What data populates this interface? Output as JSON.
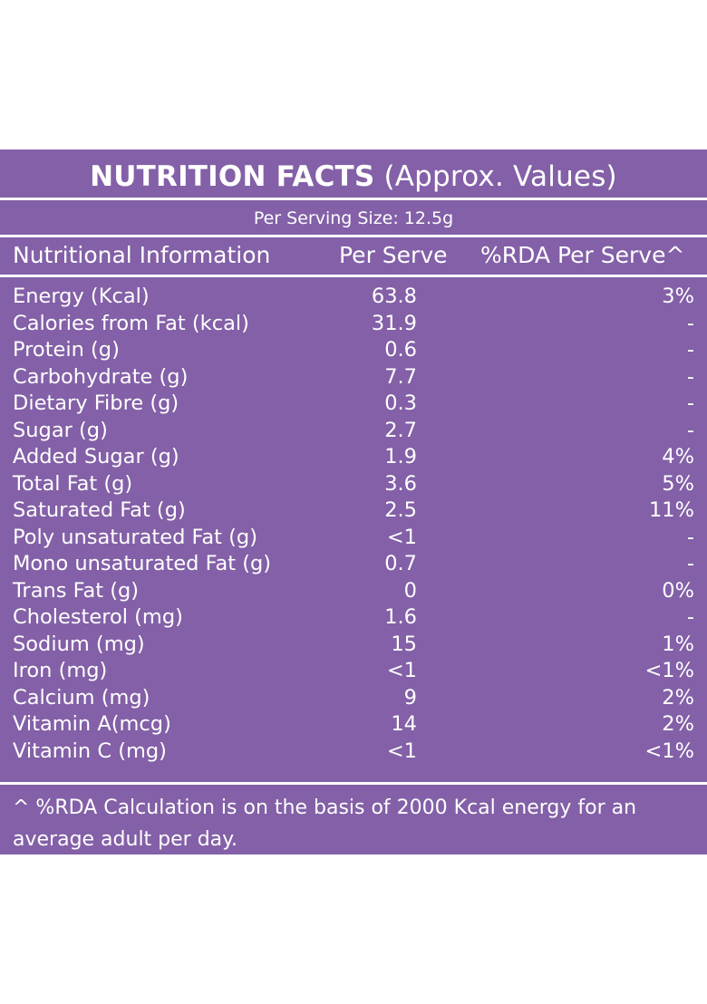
{
  "title": {
    "bold": "NUTRITION FACTS",
    "rest": " (Approx. Values)"
  },
  "serving": "Per Serving Size: 12.5g",
  "headers": {
    "name": "Nutritional Information",
    "serve": "Per Serve",
    "rda": "%RDA Per Serve^"
  },
  "rows": [
    {
      "name": "Energy (Kcal)",
      "serve": "63.8",
      "rda": "3%"
    },
    {
      "name": "Calories from Fat (kcal)",
      "serve": "31.9",
      "rda": "-"
    },
    {
      "name": "Protein (g)",
      "serve": "0.6",
      "rda": "-"
    },
    {
      "name": "Carbohydrate (g)",
      "serve": "7.7",
      "rda": "-"
    },
    {
      "name": "Dietary Fibre (g)",
      "serve": "0.3",
      "rda": "-"
    },
    {
      "name": "Sugar (g)",
      "serve": "2.7",
      "rda": "-"
    },
    {
      "name": "Added Sugar (g)",
      "serve": "1.9",
      "rda": "4%"
    },
    {
      "name": "Total Fat (g)",
      "serve": "3.6",
      "rda": "5%"
    },
    {
      "name": "Saturated Fat (g)",
      "serve": "2.5",
      "rda": "11%"
    },
    {
      "name": "Poly unsaturated Fat (g)",
      "serve": "<1",
      "rda": "-"
    },
    {
      "name": "Mono unsaturated Fat (g)",
      "serve": "0.7",
      "rda": "-"
    },
    {
      "name": "Trans Fat (g)",
      "serve": "0",
      "rda": "0%"
    },
    {
      "name": "Cholesterol (mg)",
      "serve": "1.6",
      "rda": "-"
    },
    {
      "name": "Sodium (mg)",
      "serve": "15",
      "rda": "1%"
    },
    {
      "name": "Iron (mg)",
      "serve": "<1",
      "rda": "<1%"
    },
    {
      "name": "Calcium (mg)",
      "serve": "9",
      "rda": "2%"
    },
    {
      "name": "Vitamin A(mcg)",
      "serve": "14",
      "rda": "2%"
    },
    {
      "name": "Vitamin C (mg)",
      "serve": "<1",
      "rda": "<1%"
    }
  ],
  "footnote": "^ %RDA Calculation is on the basis of 2000 Kcal energy for an average adult per day.",
  "colors": {
    "panel": "#8360a7",
    "text": "#ffffff"
  }
}
